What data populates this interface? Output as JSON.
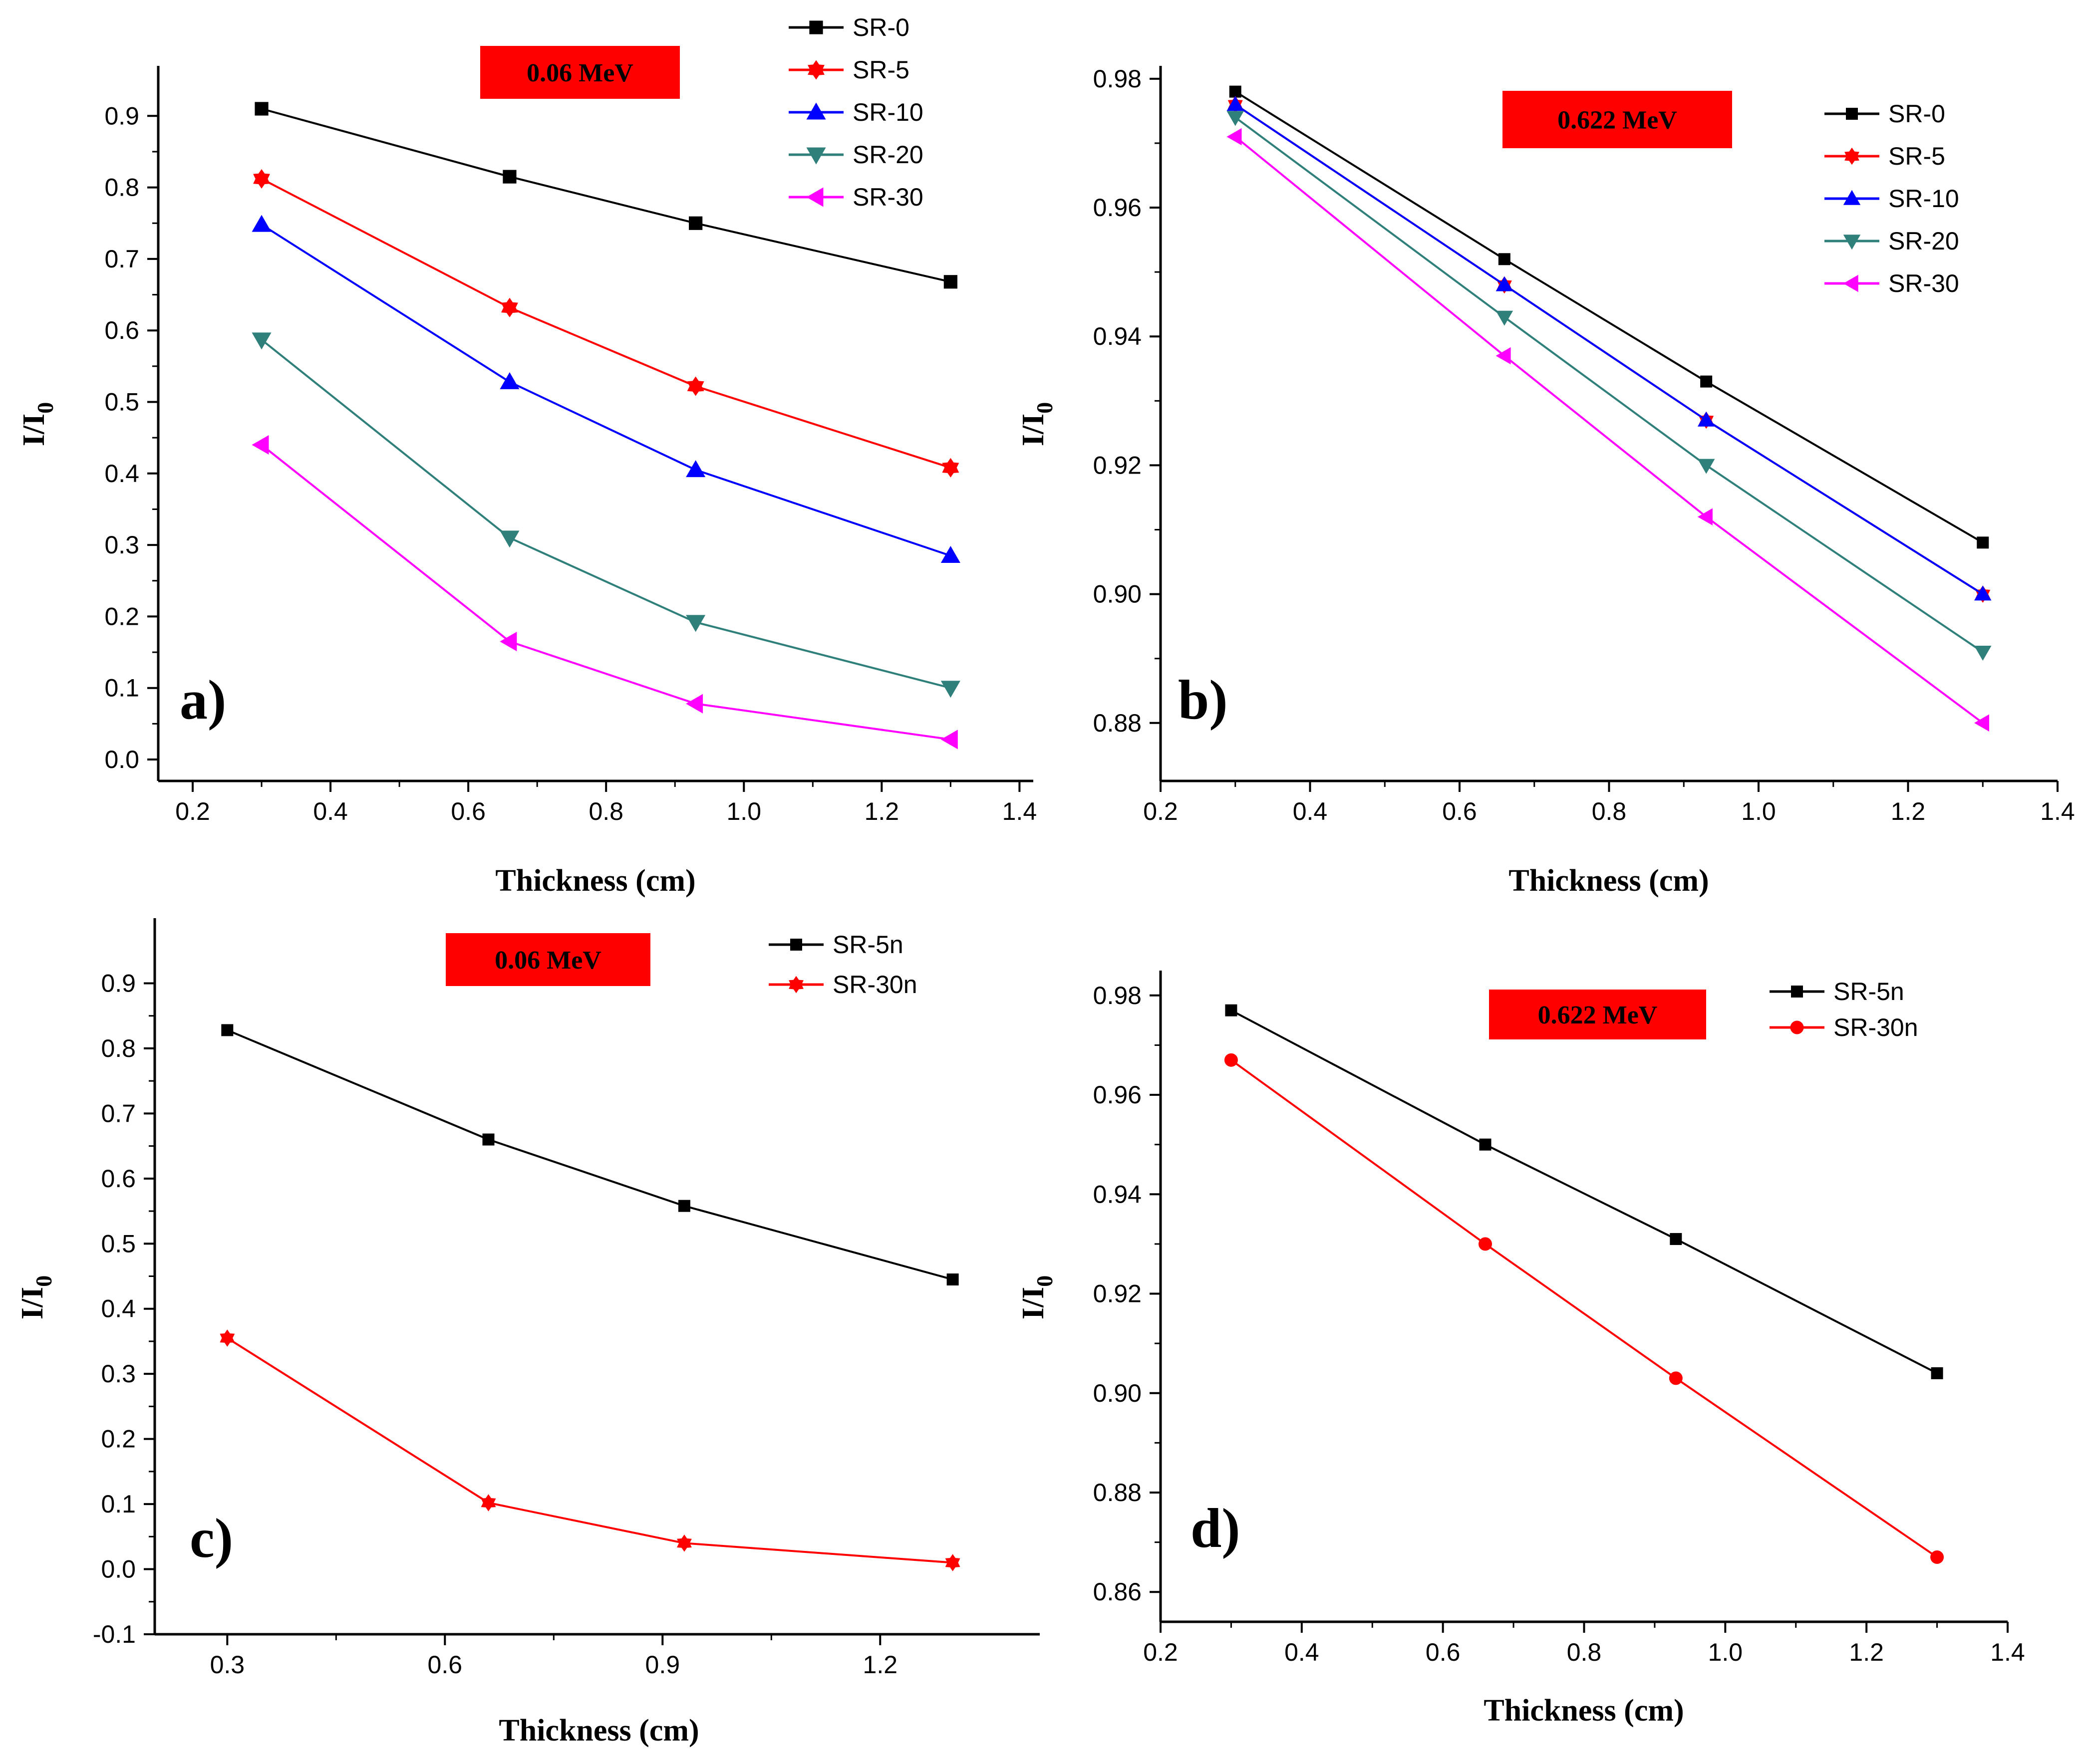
{
  "colors": {
    "SR-0": "#000000",
    "SR-5": "#ff0000",
    "SR-10": "#0000ff",
    "SR-20": "#2f7f7a",
    "SR-30": "#ff00ff",
    "SR-5n": "#000000",
    "SR-30n": "#ff0000",
    "badge": "#ff0000"
  },
  "chart_data": [
    {
      "id": "a",
      "type": "line",
      "panel_label": "a)",
      "badge": "0.06 MeV",
      "xlabel": "Thickness (cm)",
      "ylabel": "I/I",
      "ylabel_sub": "0",
      "xlim": [
        0.15,
        1.42
      ],
      "ylim": [
        -0.03,
        0.97
      ],
      "xticks": [
        0.2,
        0.4,
        0.6,
        0.8,
        1.0,
        1.2,
        1.4
      ],
      "xtick_labels": [
        "0.2",
        "0.4",
        "0.6",
        "0.8",
        "1.0",
        "1.2",
        "1.4"
      ],
      "yticks": [
        0.0,
        0.1,
        0.2,
        0.3,
        0.4,
        0.5,
        0.6,
        0.7,
        0.8,
        0.9
      ],
      "ytick_labels": [
        "0.0",
        "0.1",
        "0.2",
        "0.3",
        "0.4",
        "0.5",
        "0.6",
        "0.7",
        "0.8",
        "0.9"
      ],
      "legend_position": "top-right",
      "x": [
        0.3,
        0.66,
        0.93,
        1.3
      ],
      "series": [
        {
          "name": "SR-0",
          "marker": "square",
          "values": [
            0.91,
            0.815,
            0.75,
            0.668
          ]
        },
        {
          "name": "SR-5",
          "marker": "star",
          "values": [
            0.812,
            0.632,
            0.522,
            0.408
          ]
        },
        {
          "name": "SR-10",
          "marker": "triangle-up",
          "values": [
            0.748,
            0.528,
            0.405,
            0.285
          ]
        },
        {
          "name": "SR-20",
          "marker": "triangle-down",
          "values": [
            0.587,
            0.31,
            0.192,
            0.1
          ]
        },
        {
          "name": "SR-30",
          "marker": "triangle-left",
          "values": [
            0.44,
            0.165,
            0.078,
            0.028
          ]
        }
      ]
    },
    {
      "id": "b",
      "type": "line",
      "panel_label": "b)",
      "badge": "0.622 MeV",
      "xlabel": "Thickness (cm)",
      "ylabel": "I/I",
      "ylabel_sub": "0",
      "xlim": [
        0.2,
        1.4
      ],
      "ylim": [
        0.871,
        0.982
      ],
      "xticks": [
        0.2,
        0.4,
        0.6,
        0.8,
        1.0,
        1.2,
        1.4
      ],
      "xtick_labels": [
        "0.2",
        "0.4",
        "0.6",
        "0.8",
        "1.0",
        "1.2",
        "1.4"
      ],
      "yticks": [
        0.88,
        0.9,
        0.92,
        0.94,
        0.96,
        0.98
      ],
      "ytick_labels": [
        "0.88",
        "0.90",
        "0.92",
        "0.94",
        "0.96",
        "0.98"
      ],
      "legend_position": "top-right",
      "x": [
        0.3,
        0.66,
        0.93,
        1.3
      ],
      "series": [
        {
          "name": "SR-0",
          "marker": "square",
          "values": [
            0.978,
            0.952,
            0.933,
            0.908
          ]
        },
        {
          "name": "SR-5",
          "marker": "star",
          "values": [
            0.976,
            0.948,
            0.927,
            0.9
          ]
        },
        {
          "name": "SR-10",
          "marker": "triangle-up",
          "values": [
            0.976,
            0.948,
            0.927,
            0.9
          ]
        },
        {
          "name": "SR-20",
          "marker": "triangle-down",
          "values": [
            0.974,
            0.943,
            0.92,
            0.891
          ]
        },
        {
          "name": "SR-30",
          "marker": "triangle-left",
          "values": [
            0.971,
            0.937,
            0.912,
            0.88
          ]
        }
      ]
    },
    {
      "id": "c",
      "type": "line",
      "panel_label": "c)",
      "badge": "0.06 MeV",
      "xlabel": "Thickness (cm)",
      "ylabel": "I/I",
      "ylabel_sub": "0",
      "xlim": [
        0.2,
        1.42
      ],
      "ylim": [
        -0.1,
        1.0
      ],
      "xticks": [
        0.3,
        0.6,
        0.9,
        1.2
      ],
      "xtick_labels": [
        "0.3",
        "0.6",
        "0.9",
        "1.2"
      ],
      "yticks": [
        -0.1,
        0.0,
        0.1,
        0.2,
        0.3,
        0.4,
        0.5,
        0.6,
        0.7,
        0.8,
        0.9
      ],
      "ytick_labels": [
        "-0.1",
        "0.0",
        "0.1",
        "0.2",
        "0.3",
        "0.4",
        "0.5",
        "0.6",
        "0.7",
        "0.8",
        "0.9"
      ],
      "legend_position": "top-right",
      "x": [
        0.3,
        0.66,
        0.93,
        1.3
      ],
      "series": [
        {
          "name": "SR-5n",
          "marker": "square",
          "values": [
            0.828,
            0.66,
            0.558,
            0.445
          ]
        },
        {
          "name": "SR-30n",
          "marker": "star",
          "values": [
            0.355,
            0.102,
            0.04,
            0.01
          ]
        }
      ]
    },
    {
      "id": "d",
      "type": "line",
      "panel_label": "d)",
      "badge": "0.622 MeV",
      "xlabel": "Thickness (cm)",
      "ylabel": "I/I",
      "ylabel_sub": "0",
      "xlim": [
        0.2,
        1.4
      ],
      "ylim": [
        0.854,
        0.985
      ],
      "xticks": [
        0.2,
        0.4,
        0.6,
        0.8,
        1.0,
        1.2,
        1.4
      ],
      "xtick_labels": [
        "0.2",
        "0.4",
        "0.6",
        "0.8",
        "1.0",
        "1.2",
        "1.4"
      ],
      "yticks": [
        0.86,
        0.88,
        0.9,
        0.92,
        0.94,
        0.96,
        0.98
      ],
      "ytick_labels": [
        "0.86",
        "0.88",
        "0.90",
        "0.92",
        "0.94",
        "0.96",
        "0.98"
      ],
      "legend_position": "top-right",
      "x": [
        0.3,
        0.66,
        0.93,
        1.3
      ],
      "series": [
        {
          "name": "SR-5n",
          "marker": "square",
          "values": [
            0.977,
            0.95,
            0.931,
            0.904
          ]
        },
        {
          "name": "SR-30n",
          "marker": "circle",
          "values": [
            0.967,
            0.93,
            0.903,
            0.867
          ]
        }
      ]
    }
  ]
}
